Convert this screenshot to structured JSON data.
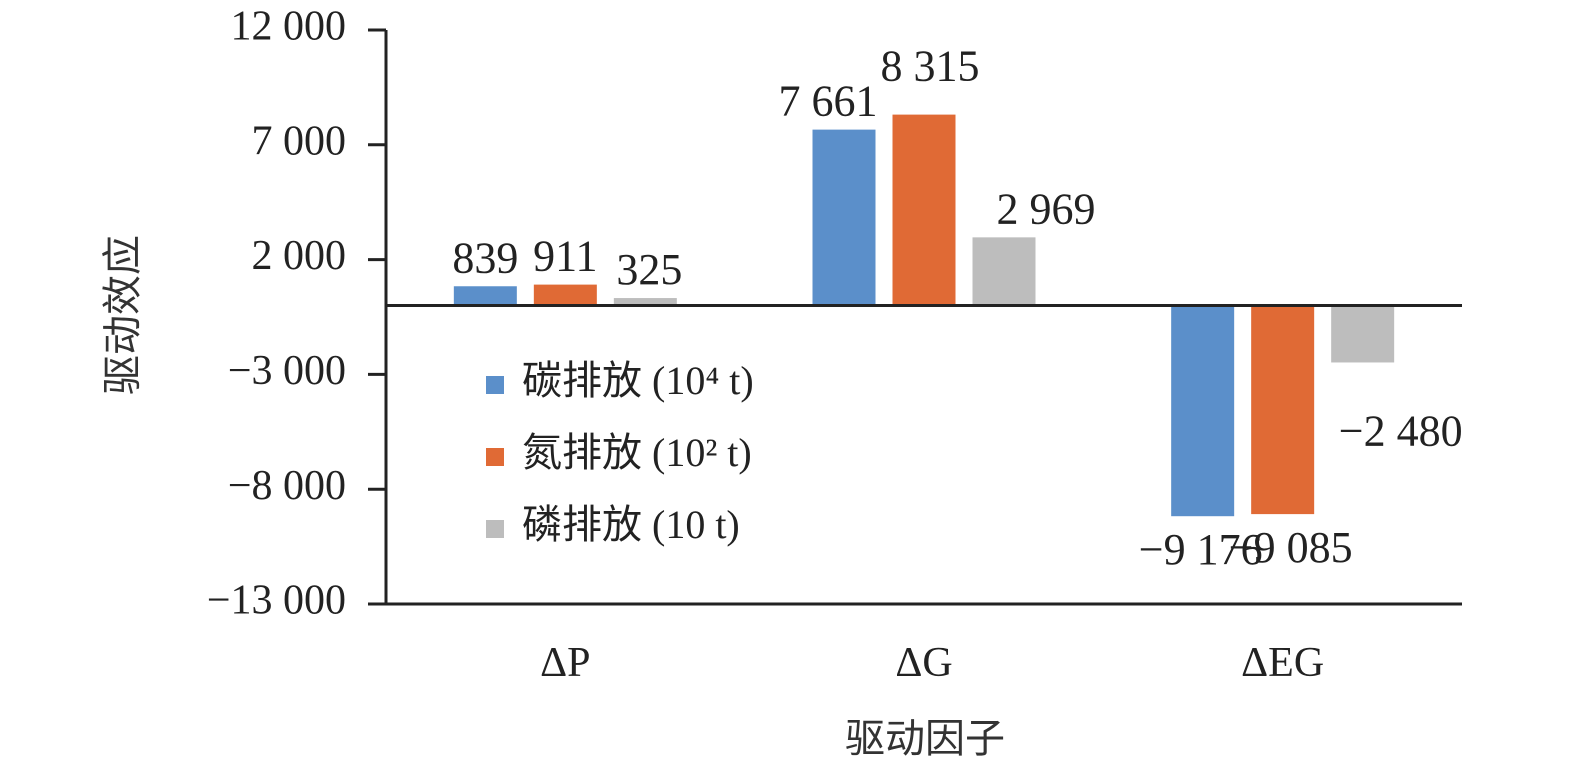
{
  "chart_data": {
    "type": "bar",
    "categories": [
      "ΔP",
      "ΔG",
      "ΔEG"
    ],
    "series": [
      {
        "name": "碳排放 (10⁴ t)",
        "values": [
          839,
          7661,
          -9176
        ],
        "color": "#5b8fca"
      },
      {
        "name": "氮排放 (10² t)",
        "values": [
          911,
          8315,
          -9085
        ],
        "color": "#e06a35"
      },
      {
        "name": "磷排放 (10 t)",
        "values": [
          325,
          2969,
          -2480
        ],
        "color": "#bdbdbd"
      }
    ],
    "data_labels": [
      [
        "839",
        "7 661",
        "−9 176"
      ],
      [
        "911",
        "8 315",
        "−9 085"
      ],
      [
        "325",
        "2 969",
        "−2 480"
      ]
    ],
    "legend": [
      "碳排放 (10⁴ t)",
      "氮排放 (10² t)",
      "磷排放 (10 t)"
    ],
    "legend_position": "inside-left",
    "title": "",
    "xlabel": "驱动因子",
    "ylabel": "驱动效应",
    "ylim": [
      -13000,
      12000
    ],
    "yticks": [
      12000,
      7000,
      2000,
      -3000,
      -8000,
      -13000
    ],
    "ytick_labels": [
      "12 000",
      "7 000",
      "2 000",
      "−3 000",
      "−8 000",
      "−13 000"
    ],
    "grid": false
  }
}
